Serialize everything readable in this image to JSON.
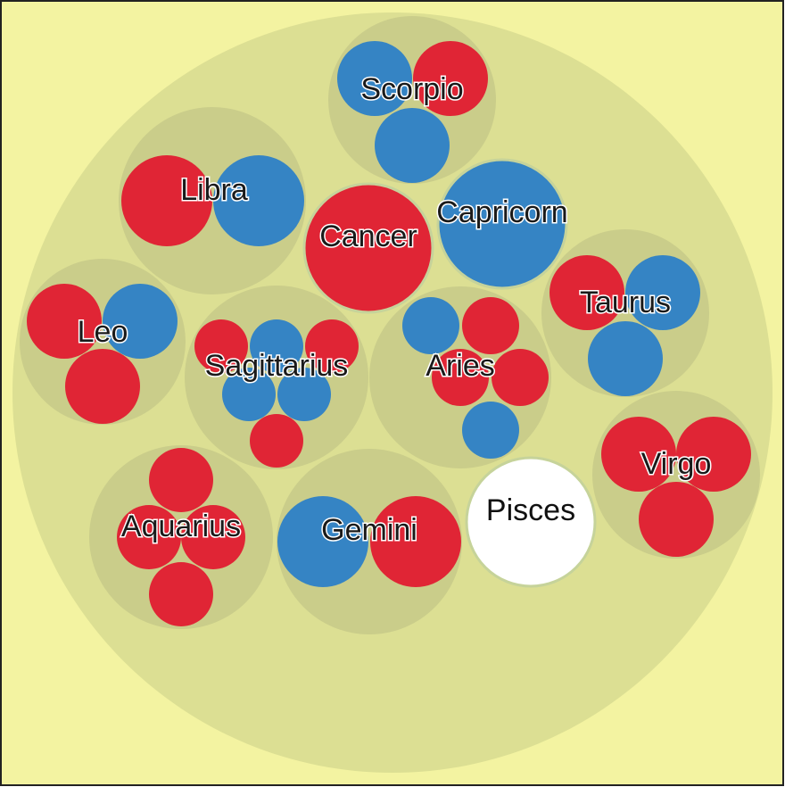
{
  "colors": {
    "background": "#f3f3a1",
    "outer_circle": "#dcdf93",
    "group_circle": "#c8cb8a",
    "red": "#e02535",
    "blue": "#3584c4",
    "white": "#ffffff"
  },
  "groups": [
    {
      "label": "Scorpio",
      "leaves": [
        "blue",
        "red",
        "blue"
      ]
    },
    {
      "label": "Libra",
      "leaves": [
        "red",
        "blue"
      ]
    },
    {
      "label": "Cancer",
      "leaves": [
        "red"
      ]
    },
    {
      "label": "Capricorn",
      "leaves": [
        "blue"
      ]
    },
    {
      "label": "Leo",
      "leaves": [
        "red",
        "blue",
        "red"
      ]
    },
    {
      "label": "Sagittarius",
      "leaves": [
        "red",
        "blue",
        "red",
        "blue",
        "blue",
        "red"
      ]
    },
    {
      "label": "Aries",
      "leaves": [
        "blue",
        "red",
        "red",
        "red",
        "blue"
      ]
    },
    {
      "label": "Taurus",
      "leaves": [
        "red",
        "blue",
        "blue"
      ]
    },
    {
      "label": "Virgo",
      "leaves": [
        "red",
        "red",
        "red"
      ]
    },
    {
      "label": "Aquarius",
      "leaves": [
        "red",
        "red",
        "red",
        "red"
      ]
    },
    {
      "label": "Gemini",
      "leaves": [
        "blue",
        "red"
      ]
    },
    {
      "label": "Pisces",
      "leaves": [
        "white"
      ]
    }
  ]
}
